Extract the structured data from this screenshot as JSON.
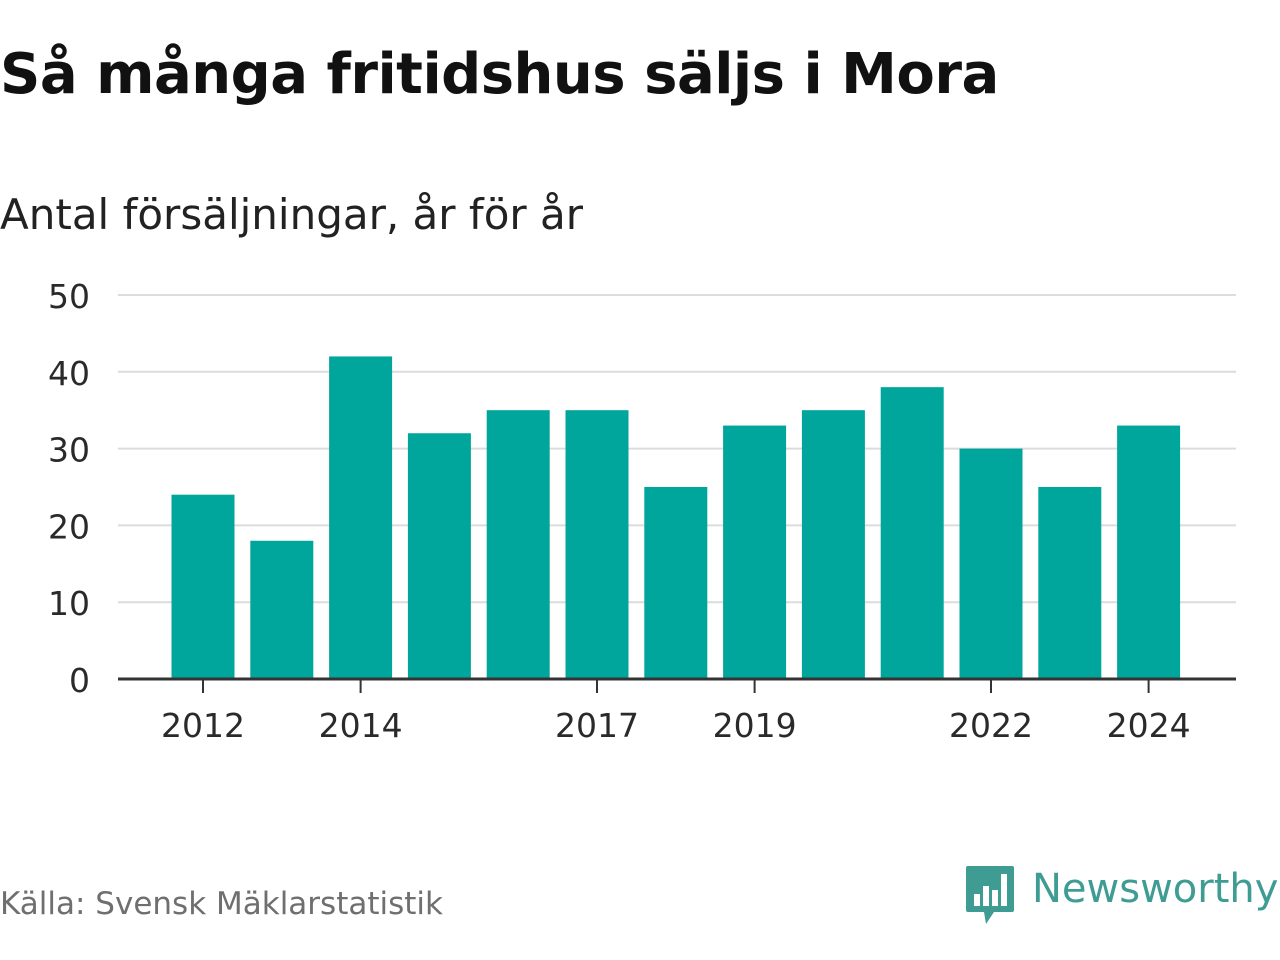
{
  "colors": {
    "bar": "#00a59c",
    "grid": "#dcdcdc",
    "axis": "#333333",
    "brand": "#3f9c93",
    "source": "#6f6f6f"
  },
  "source": "Källa: Svensk Mäklarstatistik",
  "brand": {
    "name": "Newsworthy",
    "icon": "bar-chart-speech-bubble-icon"
  },
  "chart_data": {
    "type": "bar",
    "title": "Så många fritidshus säljs i Mora",
    "subtitle": "Antal försäljningar, år för år",
    "xlabel": "",
    "ylabel": "",
    "categories": [
      "2012",
      "2013",
      "2014",
      "2015",
      "2016",
      "2017",
      "2018",
      "2019",
      "2020",
      "2021",
      "2022",
      "2023",
      "2024"
    ],
    "values": [
      24,
      18,
      42,
      32,
      35,
      35,
      25,
      33,
      35,
      38,
      30,
      25,
      33
    ],
    "x_tick_labels": [
      "2012",
      "2014",
      "2017",
      "2019",
      "2022",
      "2024"
    ],
    "y_ticks": [
      0,
      10,
      20,
      30,
      40,
      50
    ],
    "ylim": [
      0,
      50
    ],
    "grid": true,
    "legend": "none"
  }
}
